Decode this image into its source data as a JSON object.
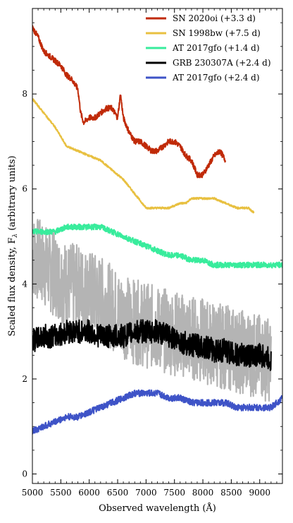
{
  "chart_data": {
    "type": "line",
    "xlabel": "Observed wavelength (Å)",
    "ylabel": "Scaled flux density, F",
    "ylabel_sub": "λ",
    "ylabel_suffix": " (arbitrary units)",
    "xlim": [
      5000,
      9400
    ],
    "ylim": [
      -0.2,
      9.8
    ],
    "xticks": [
      5000,
      5500,
      6000,
      6500,
      7000,
      7500,
      8000,
      8500,
      9000
    ],
    "yticks": [
      0,
      2,
      4,
      6,
      8
    ],
    "legend_position": "top-right",
    "series": [
      {
        "name": "SN 2020oi (+3.3 d)",
        "color": "#c02a08",
        "in_legend": true,
        "noise": 0.06,
        "x": [
          5000,
          5100,
          5200,
          5300,
          5400,
          5500,
          5600,
          5700,
          5800,
          5850,
          5900,
          6000,
          6100,
          6200,
          6300,
          6400,
          6450,
          6500,
          6550,
          6600,
          6700,
          6800,
          6900,
          7000,
          7100,
          7200,
          7300,
          7400,
          7500,
          7600,
          7700,
          7800,
          7900,
          8000,
          8100,
          8200,
          8300,
          8400
        ],
        "y": [
          9.4,
          9.2,
          8.9,
          8.8,
          8.7,
          8.6,
          8.4,
          8.3,
          8.1,
          7.6,
          7.4,
          7.5,
          7.5,
          7.6,
          7.7,
          7.7,
          7.6,
          7.5,
          8.0,
          7.5,
          7.2,
          7.0,
          7.0,
          6.9,
          6.8,
          6.8,
          6.9,
          7.0,
          7.0,
          6.9,
          6.7,
          6.6,
          6.3,
          6.3,
          6.5,
          6.7,
          6.8,
          6.6
        ]
      },
      {
        "name": "SN 1998bw (+7.5 d)",
        "color": "#e8c040",
        "in_legend": true,
        "noise": 0.02,
        "x": [
          5000,
          5200,
          5400,
          5600,
          5800,
          6000,
          6200,
          6400,
          6600,
          6800,
          7000,
          7200,
          7400,
          7600,
          7700,
          7800,
          8000,
          8200,
          8400,
          8600,
          8800,
          8900
        ],
        "y": [
          7.9,
          7.6,
          7.3,
          6.9,
          6.8,
          6.7,
          6.6,
          6.4,
          6.2,
          5.9,
          5.6,
          5.6,
          5.6,
          5.7,
          5.7,
          5.8,
          5.8,
          5.8,
          5.7,
          5.6,
          5.6,
          5.5
        ]
      },
      {
        "name": "AT 2017gfo (+1.4 d)",
        "color": "#38ec9c",
        "in_legend": true,
        "noise": 0.06,
        "x": [
          5000,
          5200,
          5400,
          5600,
          5800,
          6000,
          6200,
          6400,
          6600,
          6800,
          7000,
          7200,
          7400,
          7600,
          7800,
          8000,
          8200,
          8400,
          8600,
          8800,
          9000,
          9200,
          9400
        ],
        "y": [
          5.1,
          5.1,
          5.1,
          5.2,
          5.2,
          5.2,
          5.2,
          5.1,
          5.0,
          4.9,
          4.8,
          4.7,
          4.6,
          4.6,
          4.5,
          4.5,
          4.4,
          4.4,
          4.4,
          4.4,
          4.4,
          4.4,
          4.4
        ]
      },
      {
        "name": "GRB 230307A (+2.4 d)",
        "color": "#000000",
        "in_legend": true,
        "noise": 0.25,
        "x": [
          5000,
          5200,
          5400,
          5600,
          5800,
          6000,
          6200,
          6400,
          6600,
          6800,
          7000,
          7200,
          7400,
          7600,
          7800,
          8000,
          8200,
          8400,
          8600,
          8800,
          9000,
          9200
        ],
        "y": [
          2.8,
          2.9,
          2.9,
          3.0,
          3.0,
          3.0,
          2.9,
          2.9,
          2.9,
          3.0,
          3.0,
          3.0,
          2.9,
          2.8,
          2.7,
          2.7,
          2.6,
          2.6,
          2.5,
          2.5,
          2.5,
          2.4
        ]
      },
      {
        "name": "AT 2017gfo (+2.4 d)",
        "color": "#3e53c7",
        "in_legend": true,
        "noise": 0.07,
        "x": [
          5000,
          5200,
          5400,
          5600,
          5800,
          6000,
          6200,
          6400,
          6600,
          6800,
          7000,
          7200,
          7400,
          7600,
          7800,
          8000,
          8200,
          8400,
          8600,
          8800,
          9000,
          9200,
          9400
        ],
        "y": [
          0.9,
          1.0,
          1.1,
          1.2,
          1.2,
          1.3,
          1.4,
          1.5,
          1.6,
          1.7,
          1.7,
          1.7,
          1.6,
          1.6,
          1.5,
          1.5,
          1.5,
          1.5,
          1.4,
          1.4,
          1.4,
          1.4,
          1.6
        ]
      },
      {
        "name": "",
        "color": "#b4b4b4",
        "in_legend": false,
        "noise": 0.9,
        "x": [
          5000,
          5300,
          5600,
          5900,
          6200,
          6500,
          6800,
          7100,
          7400,
          7700,
          8000,
          8300,
          8600,
          8900,
          9200
        ],
        "y": [
          4.6,
          4.3,
          4.0,
          3.9,
          3.7,
          3.4,
          3.2,
          3.1,
          3.0,
          2.9,
          2.8,
          2.7,
          2.6,
          2.5,
          2.4
        ]
      }
    ]
  }
}
